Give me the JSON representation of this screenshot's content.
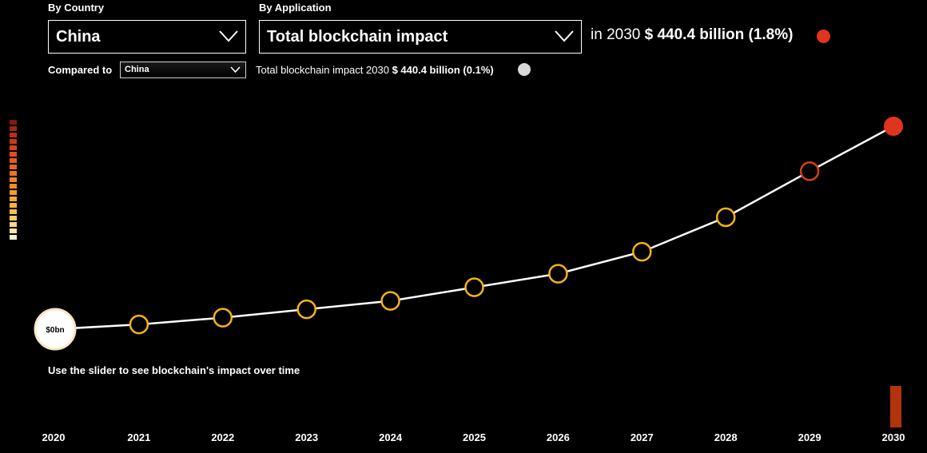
{
  "filters": {
    "country_label": "By Country",
    "country_value": "China",
    "application_label": "By Application",
    "application_value": "Total blockchain impact",
    "compared_to_label": "Compared to",
    "compared_to_value": "China"
  },
  "summary": {
    "prefix": "in 2030",
    "value": "$ 440.4 billion (1.8%)",
    "dot_color": "#e0341e"
  },
  "comparison": {
    "prefix": "Total blockchain impact 2030",
    "value": "$ 440.4 billion (0.1%)",
    "dot_color": "#d9d9d9"
  },
  "legend_colors": [
    "#7a1f0a",
    "#9b2a0f",
    "#b53312",
    "#c83a14",
    "#d84419",
    "#e04f1d",
    "#e45a20",
    "#e96622",
    "#ec7325",
    "#ef8027",
    "#f18d2a",
    "#f39b2d",
    "#f5a832",
    "#f6b43a",
    "#f7c04c",
    "#f8cc65",
    "#f9d882",
    "#fae4a6",
    "#fbeed0"
  ],
  "hint": "Use the slider to see blockchain's impact over time",
  "chart_data": {
    "type": "line",
    "x": [
      "2020",
      "2021",
      "2022",
      "2023",
      "2024",
      "2025",
      "2026",
      "2027",
      "2028",
      "2029",
      "2030"
    ],
    "values": [
      0,
      4.5,
      11,
      19,
      27,
      40,
      53,
      74,
      107,
      151,
      194
    ],
    "value_units": "relative (no axis printed)",
    "start_label": "$0bn",
    "colors": {
      "line": "#ffffff",
      "point": "#f5b316",
      "point_2029": "#d3430f",
      "point_2030": "#e0341e",
      "start_fill": "#ffffff",
      "start_stroke": "#f6e7c4"
    }
  },
  "slider": {
    "selected_year": "2030",
    "color": "#b2330c"
  }
}
